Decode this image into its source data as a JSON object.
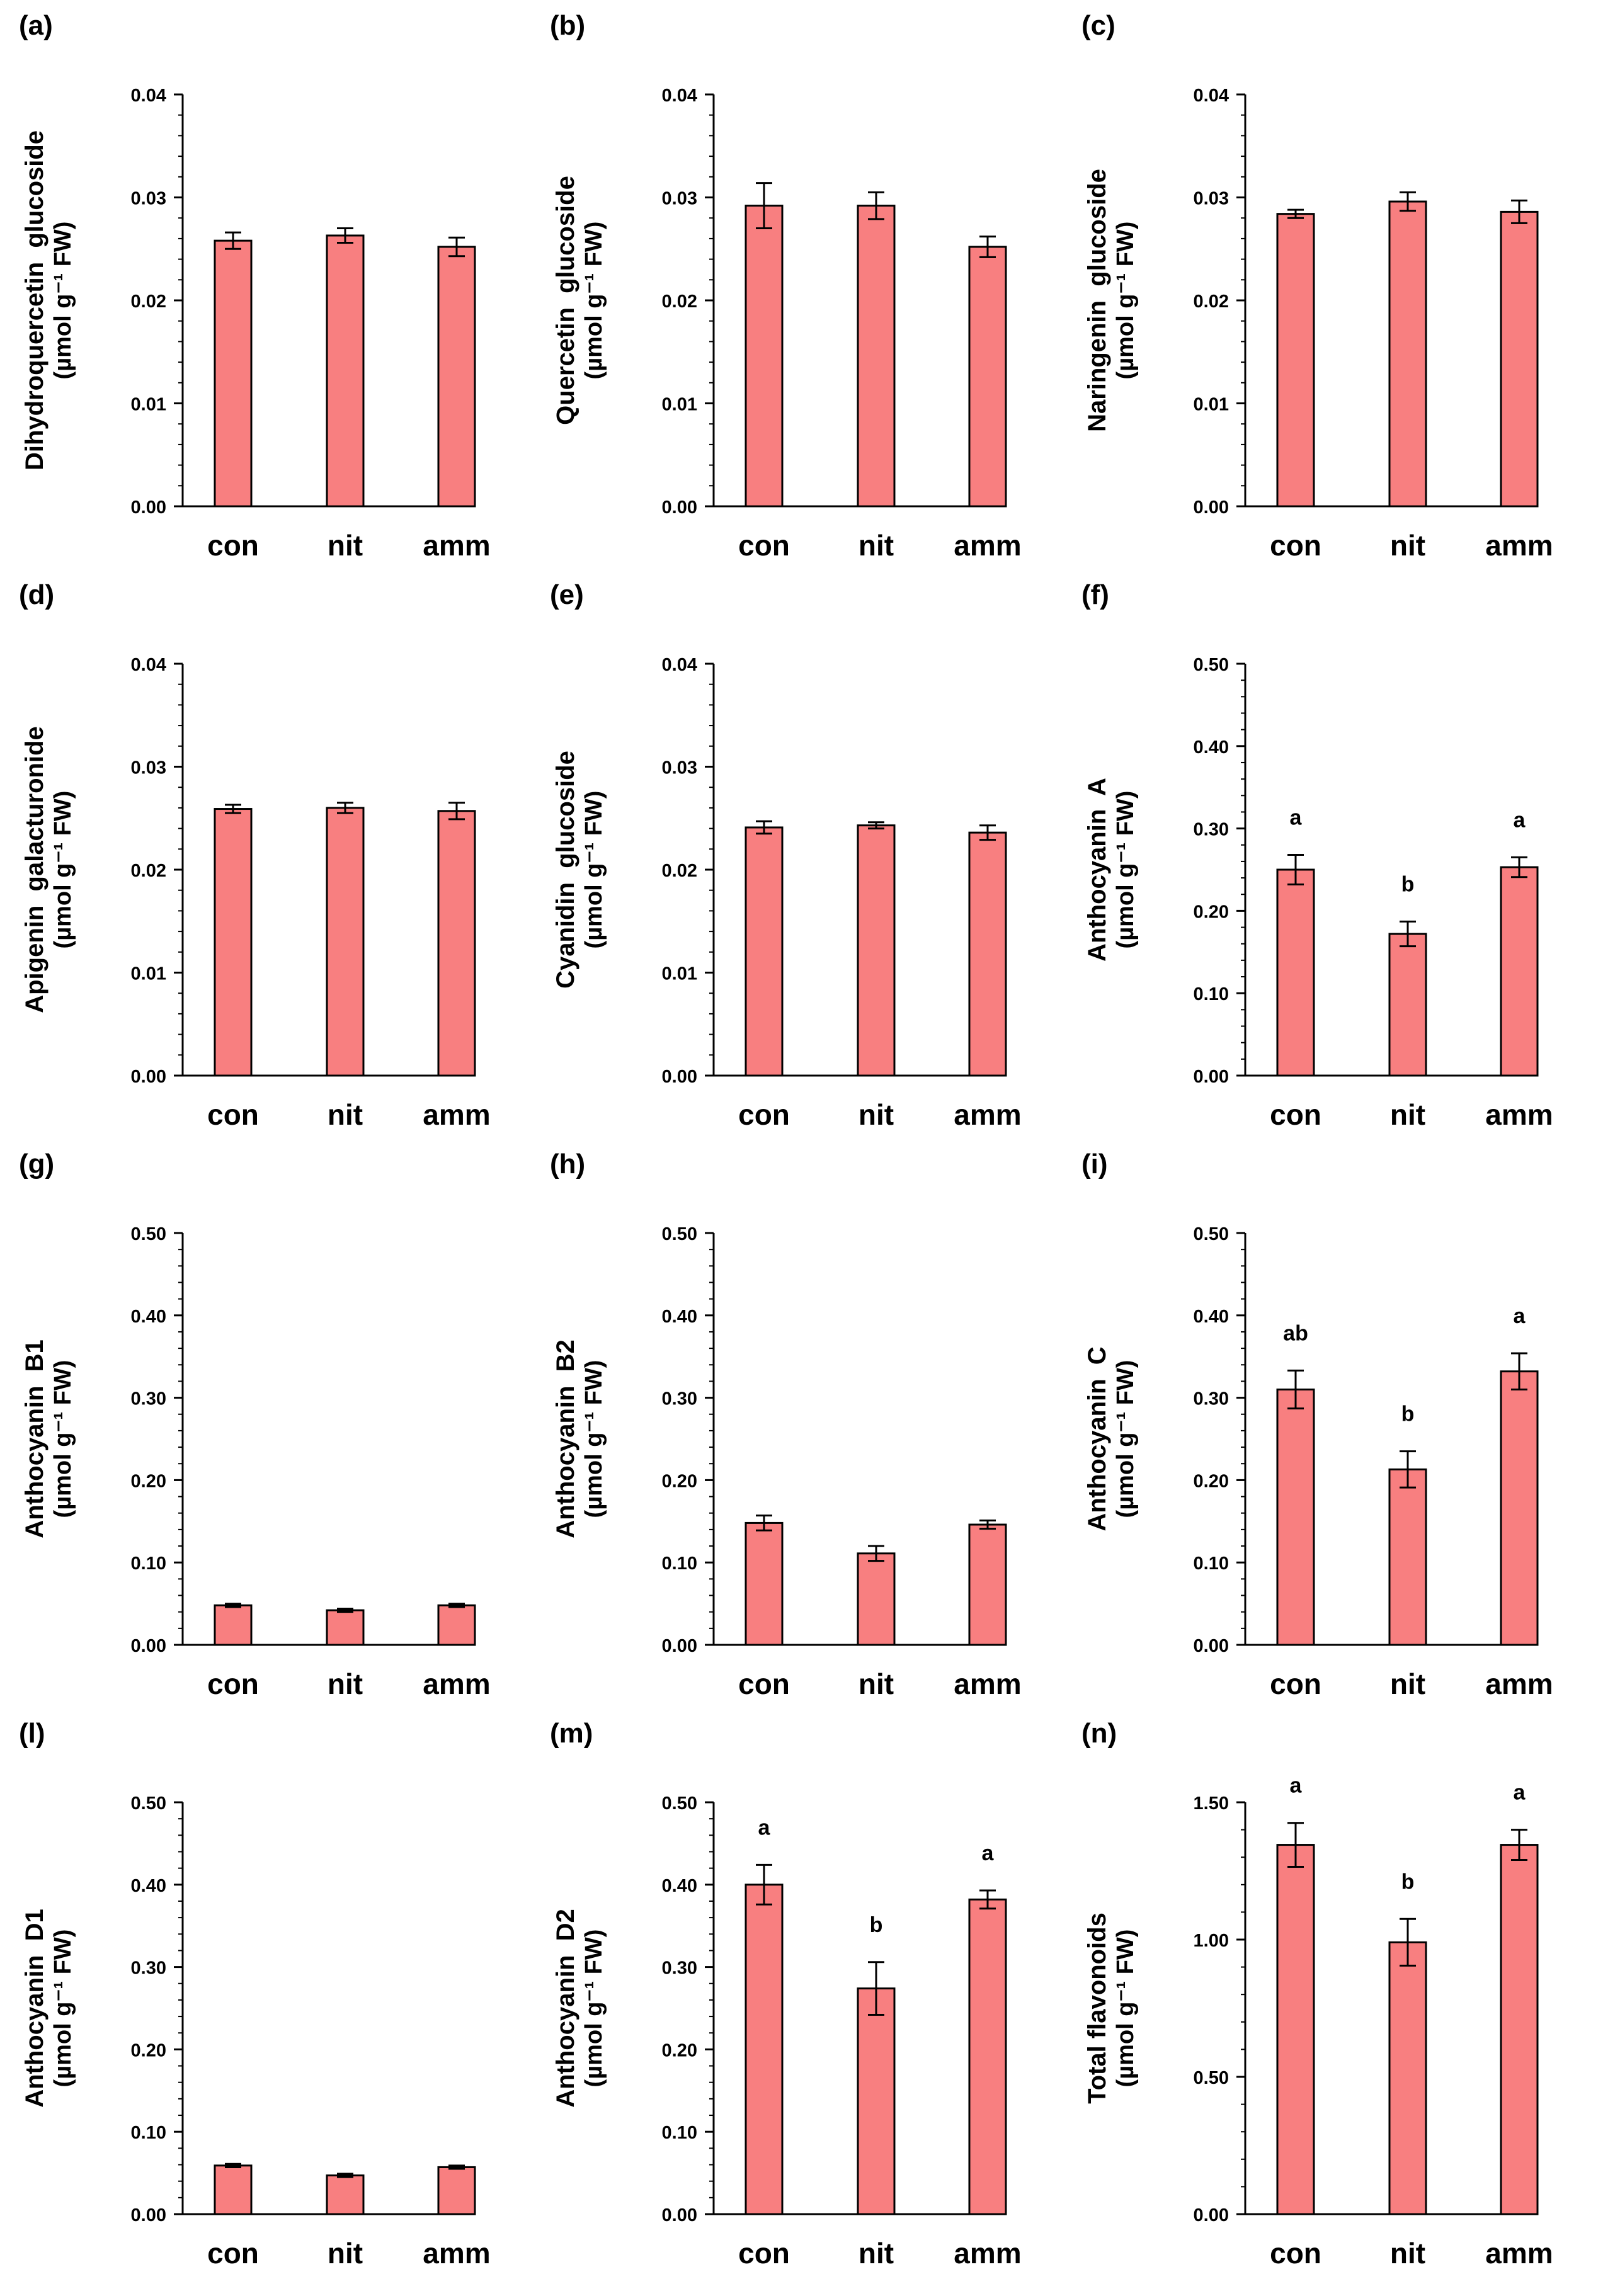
{
  "figure": {
    "colors": {
      "bar_fill": "#f87f80",
      "bar_stroke": "#000000",
      "axis": "#000000",
      "text": "#000000"
    }
  },
  "chart_data": [
    {
      "panel_label": "(a)",
      "type": "bar",
      "categories": [
        "con",
        "nit",
        "amm"
      ],
      "values": [
        0.0258,
        0.0263,
        0.0252
      ],
      "errors": [
        0.0008,
        0.0007,
        0.0009
      ],
      "letters": [
        "",
        "",
        ""
      ],
      "ylabel_line1": "Dihydroquercetin  glucoside",
      "ylabel_line2": "(µmol g⁻¹ FW)",
      "ylim": [
        0,
        0.04
      ],
      "yticks": [
        "0.00",
        "0.01",
        "0.02",
        "0.03",
        "0.04"
      ]
    },
    {
      "panel_label": "(b)",
      "type": "bar",
      "categories": [
        "con",
        "nit",
        "amm"
      ],
      "values": [
        0.0292,
        0.0292,
        0.0252
      ],
      "errors": [
        0.0022,
        0.0013,
        0.001
      ],
      "letters": [
        "",
        "",
        ""
      ],
      "ylabel_line1": "Quercetin  glucoside",
      "ylabel_line2": "(µmol g⁻¹ FW)",
      "ylim": [
        0,
        0.04
      ],
      "yticks": [
        "0.00",
        "0.01",
        "0.02",
        "0.03",
        "0.04"
      ]
    },
    {
      "panel_label": "(c)",
      "type": "bar",
      "categories": [
        "con",
        "nit",
        "amm"
      ],
      "values": [
        0.0284,
        0.0296,
        0.0286
      ],
      "errors": [
        0.0004,
        0.0009,
        0.0011
      ],
      "letters": [
        "",
        "",
        ""
      ],
      "ylabel_line1": "Naringenin  glucoside",
      "ylabel_line2": "(µmol g⁻¹ FW)",
      "ylim": [
        0,
        0.04
      ],
      "yticks": [
        "0.00",
        "0.01",
        "0.02",
        "0.03",
        "0.04"
      ]
    },
    {
      "panel_label": "(d)",
      "type": "bar",
      "categories": [
        "con",
        "nit",
        "amm"
      ],
      "values": [
        0.0259,
        0.026,
        0.0257
      ],
      "errors": [
        0.0004,
        0.0005,
        0.0008
      ],
      "letters": [
        "",
        "",
        ""
      ],
      "ylabel_line1": "Apigenin  galacturonide",
      "ylabel_line2": "(µmol g⁻¹ FW)",
      "ylim": [
        0,
        0.04
      ],
      "yticks": [
        "0.00",
        "0.01",
        "0.02",
        "0.03",
        "0.04"
      ]
    },
    {
      "panel_label": "(e)",
      "type": "bar",
      "categories": [
        "con",
        "nit",
        "amm"
      ],
      "values": [
        0.0241,
        0.0243,
        0.0236
      ],
      "errors": [
        0.0006,
        0.0003,
        0.0007
      ],
      "letters": [
        "",
        "",
        ""
      ],
      "ylabel_line1": "Cyanidin  glucoside",
      "ylabel_line2": "(µmol g⁻¹ FW)",
      "ylim": [
        0,
        0.04
      ],
      "yticks": [
        "0.00",
        "0.01",
        "0.02",
        "0.03",
        "0.04"
      ]
    },
    {
      "panel_label": "(f)",
      "type": "bar",
      "categories": [
        "con",
        "nit",
        "amm"
      ],
      "values": [
        0.25,
        0.172,
        0.253
      ],
      "errors": [
        0.018,
        0.015,
        0.012
      ],
      "letters": [
        "a",
        "b",
        "a"
      ],
      "ylabel_line1": "Anthocyanin  A",
      "ylabel_line2": "(µmol g⁻¹ FW)",
      "ylim": [
        0,
        0.5
      ],
      "yticks": [
        "0.00",
        "0.10",
        "0.20",
        "0.30",
        "0.40",
        "0.50"
      ]
    },
    {
      "panel_label": "(g)",
      "type": "bar",
      "categories": [
        "con",
        "nit",
        "amm"
      ],
      "values": [
        0.048,
        0.042,
        0.048
      ],
      "errors": [
        0.002,
        0.002,
        0.002
      ],
      "letters": [
        "",
        "",
        ""
      ],
      "ylabel_line1": "Anthocyanin  B1",
      "ylabel_line2": "(µmol g⁻¹ FW)",
      "ylim": [
        0,
        0.5
      ],
      "yticks": [
        "0.00",
        "0.10",
        "0.20",
        "0.30",
        "0.40",
        "0.50"
      ]
    },
    {
      "panel_label": "(h)",
      "type": "bar",
      "categories": [
        "con",
        "nit",
        "amm"
      ],
      "values": [
        0.148,
        0.111,
        0.146
      ],
      "errors": [
        0.009,
        0.009,
        0.005
      ],
      "letters": [
        "",
        "",
        ""
      ],
      "ylabel_line1": "Anthocyanin  B2",
      "ylabel_line2": "(µmol g⁻¹ FW)",
      "ylim": [
        0,
        0.5
      ],
      "yticks": [
        "0.00",
        "0.10",
        "0.20",
        "0.30",
        "0.40",
        "0.50"
      ]
    },
    {
      "panel_label": "(i)",
      "type": "bar",
      "categories": [
        "con",
        "nit",
        "amm"
      ],
      "values": [
        0.31,
        0.213,
        0.332
      ],
      "errors": [
        0.023,
        0.022,
        0.022
      ],
      "letters": [
        "ab",
        "b",
        "a"
      ],
      "ylabel_line1": "Anthocyanin  C",
      "ylabel_line2": "(µmol g⁻¹ FW)",
      "ylim": [
        0,
        0.5
      ],
      "yticks": [
        "0.00",
        "0.10",
        "0.20",
        "0.30",
        "0.40",
        "0.50"
      ]
    },
    {
      "panel_label": "(l)",
      "type": "bar",
      "categories": [
        "con",
        "nit",
        "amm"
      ],
      "values": [
        0.059,
        0.047,
        0.057
      ],
      "errors": [
        0.002,
        0.002,
        0.002
      ],
      "letters": [
        "",
        "",
        ""
      ],
      "ylabel_line1": "Anthocyanin  D1",
      "ylabel_line2": "(µmol g⁻¹ FW)",
      "ylim": [
        0,
        0.5
      ],
      "yticks": [
        "0.00",
        "0.10",
        "0.20",
        "0.30",
        "0.40",
        "0.50"
      ]
    },
    {
      "panel_label": "(m)",
      "type": "bar",
      "categories": [
        "con",
        "nit",
        "amm"
      ],
      "values": [
        0.4,
        0.274,
        0.382
      ],
      "errors": [
        0.024,
        0.032,
        0.011
      ],
      "letters": [
        "a",
        "b",
        "a"
      ],
      "ylabel_line1": "Anthocyanin  D2",
      "ylabel_line2": "(µmol g⁻¹ FW)",
      "ylim": [
        0,
        0.5
      ],
      "yticks": [
        "0.00",
        "0.10",
        "0.20",
        "0.30",
        "0.40",
        "0.50"
      ]
    },
    {
      "panel_label": "(n)",
      "type": "bar",
      "categories": [
        "con",
        "nit",
        "amm"
      ],
      "values": [
        1.345,
        0.99,
        1.345
      ],
      "errors": [
        0.08,
        0.085,
        0.055
      ],
      "letters": [
        "a",
        "b",
        "a"
      ],
      "ylabel_line1": "Total flavonoids",
      "ylabel_line2": "(µmol g⁻¹ FW)",
      "ylim": [
        0,
        1.5
      ],
      "yticks": [
        "0.00",
        "0.50",
        "1.00",
        "1.50"
      ]
    }
  ]
}
